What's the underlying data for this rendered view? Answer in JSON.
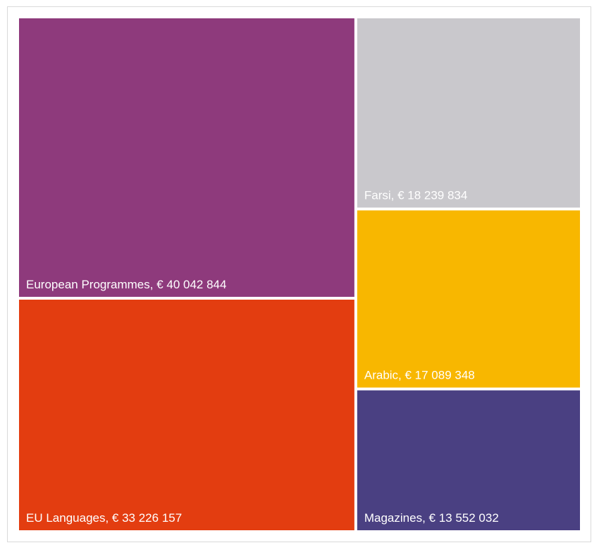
{
  "chart_data": {
    "type": "treemap",
    "currency": "€",
    "items": [
      {
        "name": "European Programmes",
        "value": 40042844,
        "label": "European Programmes, € 40 042 844",
        "color": "#8e3a7c"
      },
      {
        "name": "EU Languages",
        "value": 33226157,
        "label": "EU Languages, € 33 226 157",
        "color": "#e33d10"
      },
      {
        "name": "Farsi",
        "value": 18239834,
        "label": "Farsi, € 18 239 834",
        "color": "#c9c8cc"
      },
      {
        "name": "Arabic",
        "value": 17089348,
        "label": "Arabic, € 17 089 348",
        "color": "#f8b700"
      },
      {
        "name": "Magazines",
        "value": 13552032,
        "label": "Magazines, € 13 552 032",
        "color": "#4a4082"
      }
    ]
  }
}
